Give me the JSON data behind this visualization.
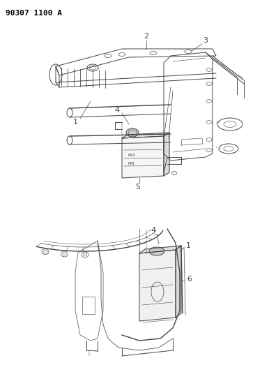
{
  "title_text": "90307 1100 A",
  "background_color": "#ffffff",
  "line_color": "#444444",
  "label_color": "#000000",
  "fig_width": 3.86,
  "fig_height": 5.33,
  "dpi": 100
}
